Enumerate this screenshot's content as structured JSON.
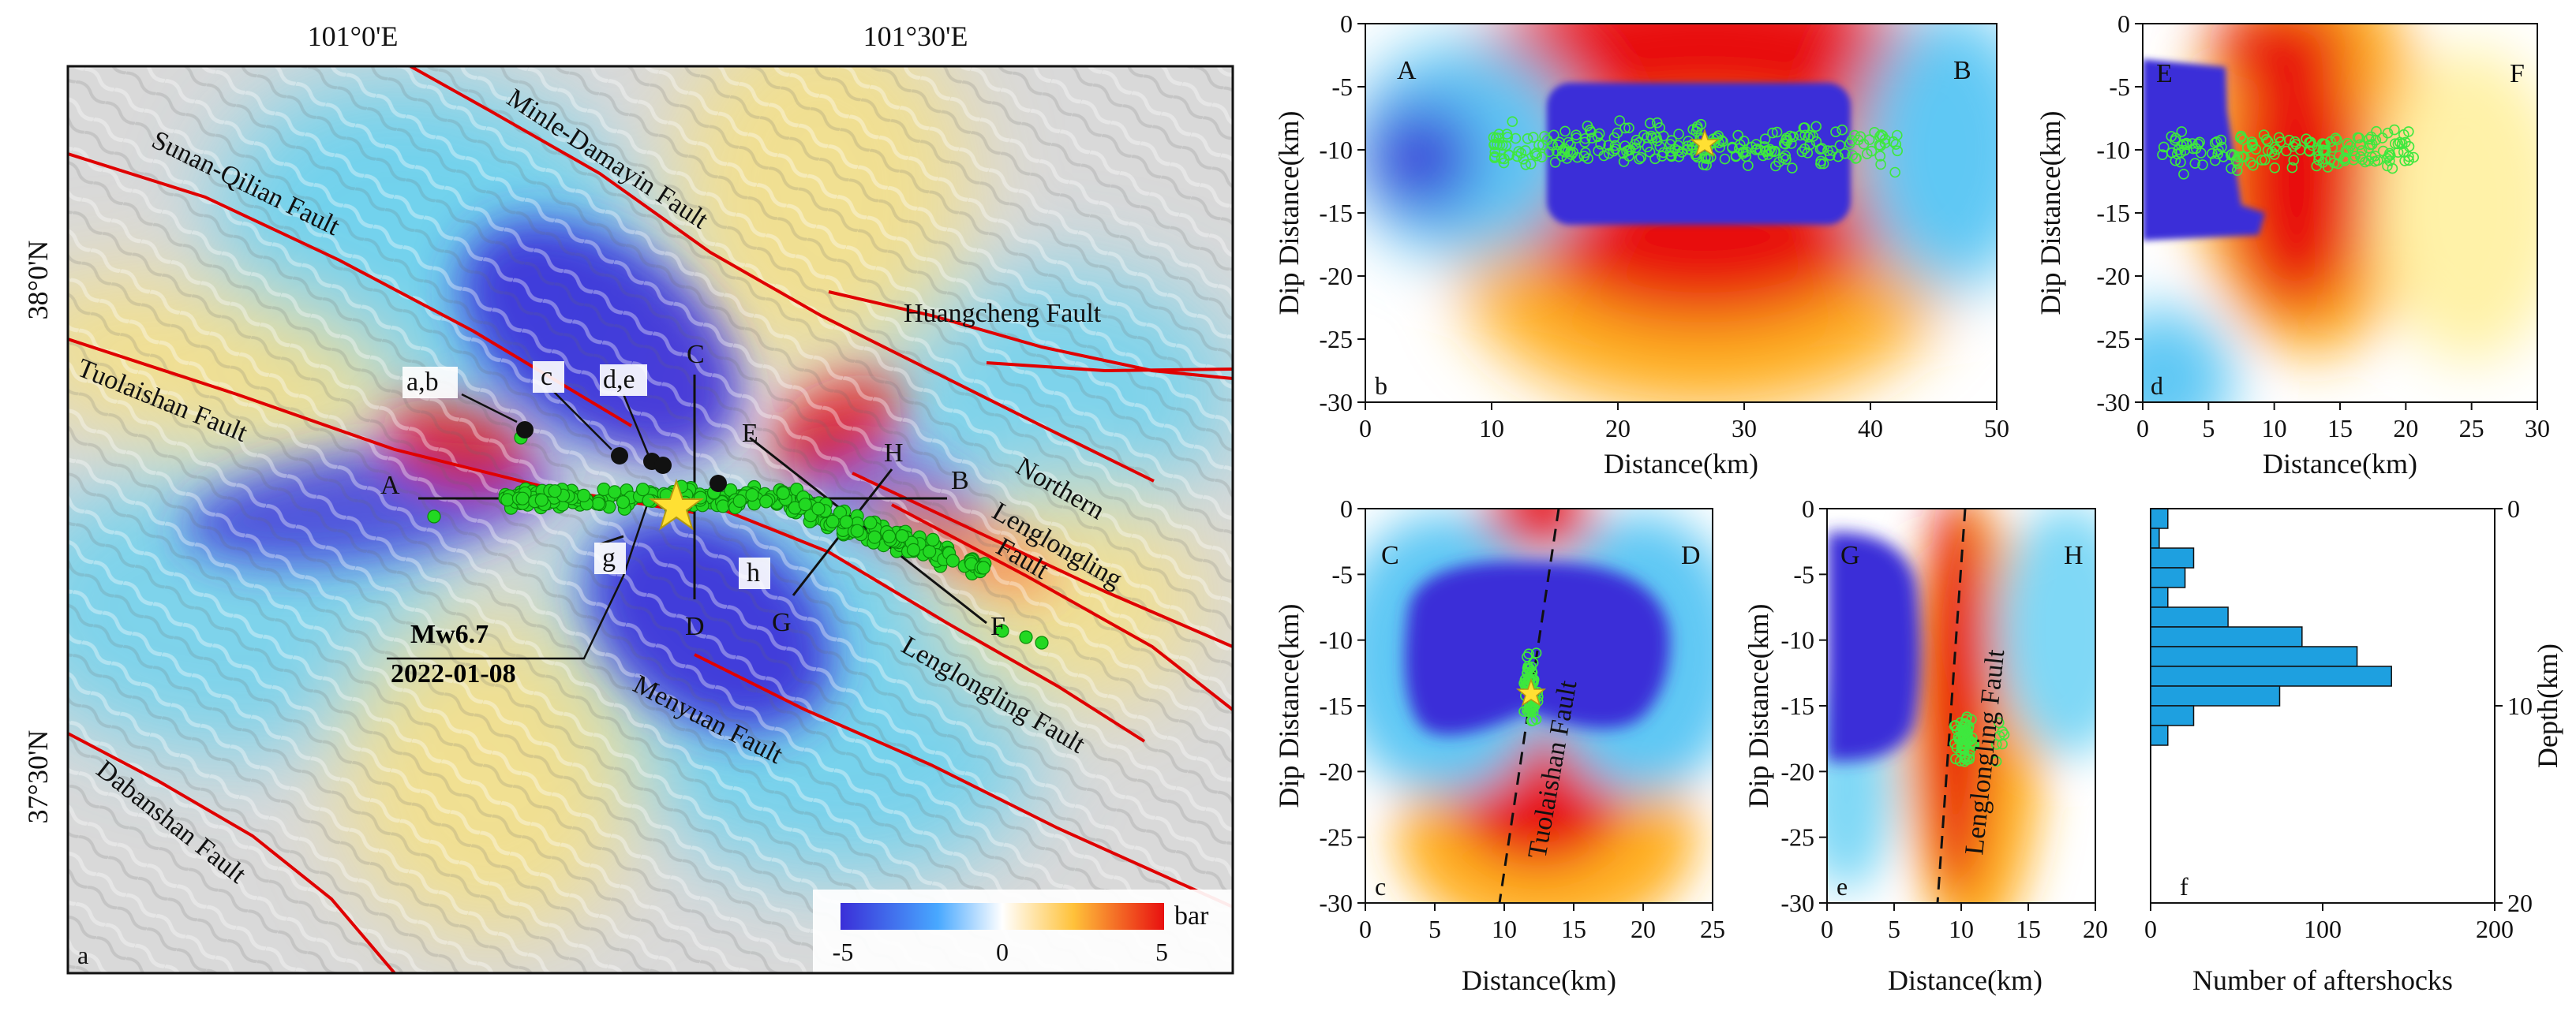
{
  "map": {
    "panel_letter": "a",
    "lon_ticks": [
      "101°0'E",
      "101°30'E"
    ],
    "lat_ticks": [
      "38°0'N",
      "37°30'N"
    ],
    "faults": [
      {
        "key": "sunan",
        "label": "Sunan-Qilian Fault"
      },
      {
        "key": "minle",
        "label": "Minle-Damayin Fault"
      },
      {
        "key": "huangcheng",
        "label": "Huangcheng Fault"
      },
      {
        "key": "tuolaishan",
        "label": "Tuolaishan Fault"
      },
      {
        "key": "northern1",
        "label": "Northern"
      },
      {
        "key": "northern2",
        "label": "Lenglongling"
      },
      {
        "key": "northern3",
        "label": "Fault"
      },
      {
        "key": "lenglongling",
        "label": "Lenglongling Fault"
      },
      {
        "key": "menyuan",
        "label": "Menyuan Fault"
      },
      {
        "key": "dabanshan",
        "label": "Dabanshan Fault"
      }
    ],
    "section_labels": [
      "A",
      "B",
      "C",
      "D",
      "E",
      "F",
      "G",
      "H"
    ],
    "event_labels": [
      "a,b",
      "c",
      "d,e",
      "g",
      "h"
    ],
    "mainshock_mag": "Mw6.7",
    "mainshock_date": "2022-01-08",
    "colorbar": {
      "unit": "bar",
      "ticks": [
        "-5",
        "0",
        "5"
      ]
    },
    "colors": {
      "negative": "#3a2fd8",
      "positive": "#e81010",
      "zero": "#ffffff",
      "fault": "#e00000",
      "aftershock": "#22d822",
      "mainshock": "#ffe033"
    }
  },
  "panels": {
    "b": {
      "letter": "b",
      "left": "A",
      "right": "B",
      "xlabel": "Distance(km)",
      "ylabel": "Dip Distance(km)",
      "xticks": [
        "0",
        "10",
        "20",
        "30",
        "40",
        "50"
      ],
      "yticks": [
        "0",
        "-5",
        "-10",
        "-15",
        "-20",
        "-25",
        "-30"
      ]
    },
    "d": {
      "letter": "d",
      "left": "E",
      "right": "F",
      "xlabel": "Distance(km)",
      "ylabel": "Dip Distance(km)",
      "xticks": [
        "0",
        "5",
        "10",
        "15",
        "20",
        "25",
        "30"
      ],
      "yticks": [
        "0",
        "-5",
        "-10",
        "-15",
        "-20",
        "-25",
        "-30"
      ]
    },
    "c": {
      "letter": "c",
      "left": "C",
      "right": "D",
      "fault": "Tuolaishan Fault",
      "xlabel": "Distance(km)",
      "ylabel": "Dip Distance(km)",
      "xticks": [
        "0",
        "5",
        "10",
        "15",
        "20",
        "25"
      ],
      "yticks": [
        "0",
        "-5",
        "-10",
        "-15",
        "-20",
        "-25",
        "-30"
      ]
    },
    "e": {
      "letter": "e",
      "left": "G",
      "right": "H",
      "fault": "Lenglongling Fault",
      "xlabel": "Distance(km)",
      "ylabel": "Dip Distance(km)",
      "xticks": [
        "0",
        "5",
        "10",
        "15",
        "20"
      ],
      "yticks": [
        "0",
        "-5",
        "-10",
        "-15",
        "-20",
        "-25",
        "-30"
      ]
    }
  },
  "chart_data": {
    "type": "bar",
    "panel_letter": "f",
    "xlabel": "Number of aftershocks",
    "ylabel": "Depth(km)",
    "xlim": [
      0,
      200
    ],
    "ylim": [
      0,
      20
    ],
    "xticks": [
      "0",
      "100",
      "200"
    ],
    "yticks": [
      "0",
      "10",
      "20"
    ],
    "orientation": "horizontal",
    "bin_width_km": 1,
    "depth_bins": [
      0.5,
      1.5,
      2.5,
      3.5,
      4.5,
      5.5,
      6.5,
      7.5,
      8.5,
      9.5,
      10.5,
      11.5
    ],
    "values": [
      10,
      5,
      25,
      20,
      10,
      45,
      88,
      120,
      140,
      75,
      25,
      10
    ],
    "color": "#1ea0e0"
  }
}
